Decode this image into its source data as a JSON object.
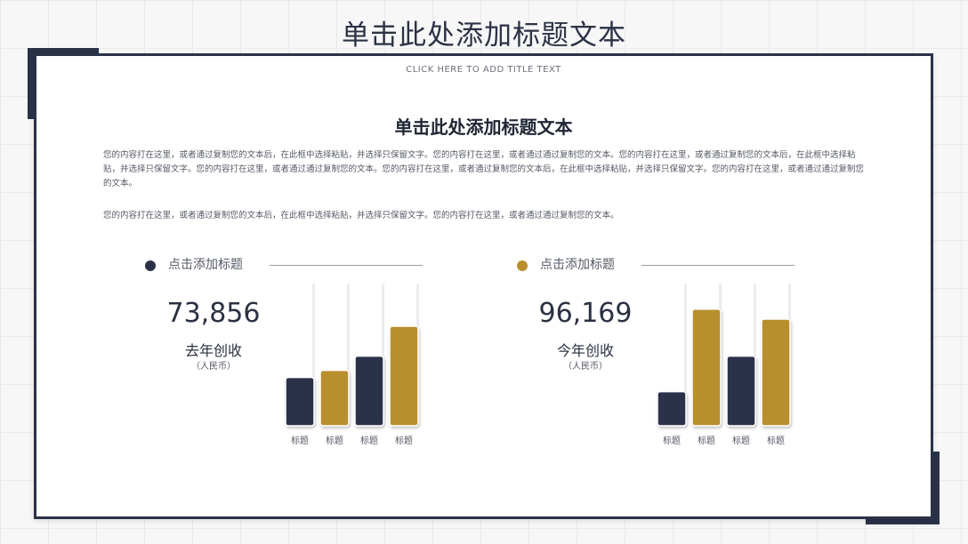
{
  "page": {
    "top_title": "单击此处添加标题文本",
    "subtitle": "CLICK  HERE TO ADD  TITLE TEXT",
    "heading": "单击此处添加标题文本",
    "paragraph1": "您的内容打在这里，或者通过复制您的文本后，在此框中选择粘贴，并选择只保留文字。您的内容打在这里，或者通过通过复制您的文本。您的内容打在这里，或者通过复制您的文本后，在此框中选择粘贴，并选择只保留文字。您的内容打在这里，或者通过通过复制您的文本。您的内容打在这里，或者通过复制您的文本后，在此框中选择粘贴，并选择只保留文字。您的内容打在这里，或者通过通过复制您的文本。",
    "paragraph2": "您的内容打在这里，或者通过复制您的文本后，在此框中选择粘贴，并选择只保留文字。您的内容打在这里，或者通过通过复制您的文本。"
  },
  "colors": {
    "navy": "#2a3248",
    "gold": "#b98f2e"
  },
  "sections": [
    {
      "title": "点击添加标题",
      "dot_color": "#2a3248",
      "value": "73,856",
      "label": "去年创收",
      "unit": "（人民币）"
    },
    {
      "title": "点击添加标题",
      "dot_color": "#b98f2e",
      "value": "96,169",
      "label": "今年创收",
      "unit": "（人民币）"
    }
  ],
  "chart_data": [
    {
      "type": "bar",
      "categories": [
        "标题",
        "标题",
        "标题",
        "标题"
      ],
      "values": [
        34,
        39,
        49,
        70
      ],
      "colors": [
        "#2a3248",
        "#b98f2e",
        "#2a3248",
        "#b98f2e"
      ],
      "ylim": [
        0,
        100
      ],
      "grid": false
    },
    {
      "type": "bar",
      "categories": [
        "标题",
        "标题",
        "标题",
        "标题"
      ],
      "values": [
        24,
        82,
        49,
        75
      ],
      "colors": [
        "#2a3248",
        "#b98f2e",
        "#2a3248",
        "#b98f2e"
      ],
      "ylim": [
        0,
        100
      ],
      "grid": false
    }
  ]
}
